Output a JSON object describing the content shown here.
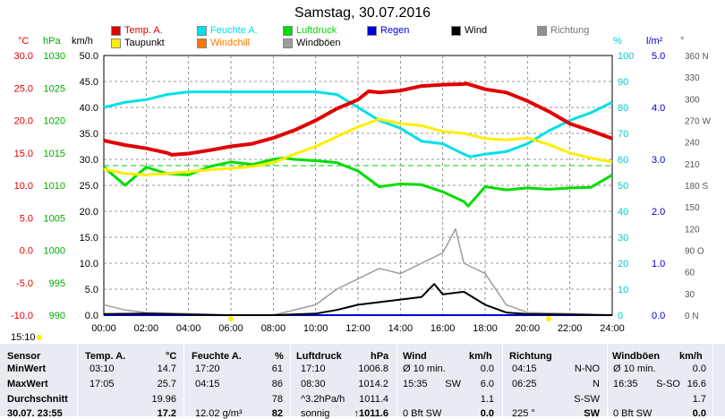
{
  "title": "Samstag, 30.07.2016",
  "legend": [
    {
      "label": "Temp. A.",
      "color": "#e00000"
    },
    {
      "label": "Feuchte A.",
      "color": "#00e0e8"
    },
    {
      "label": "Luftdruck",
      "color": "#00dd00"
    },
    {
      "label": "Regen",
      "color": "#0000dd"
    },
    {
      "label": "Wind",
      "color": "#000000"
    },
    {
      "label": "Richtung",
      "color": "#909090"
    },
    {
      "label": "Taupunkt",
      "color": "#ffee00"
    },
    {
      "label": "Windchill",
      "color": "#ff7700"
    },
    {
      "label": "Windböen",
      "color": "#a09aa0"
    }
  ],
  "units": {
    "celsius": "°C",
    "hpa": "hPa",
    "kmh": "km/h",
    "percent": "%",
    "rain": "l/m²",
    "degree": "°"
  },
  "axes": {
    "celsius": [
      "30.0",
      "25.0",
      "20.0",
      "15.0",
      "10.0",
      "5.0",
      "0.0",
      "-5.0",
      "-10.0"
    ],
    "hpa": [
      "1030",
      "1025",
      "1020",
      "1015",
      "1010",
      "1005",
      "1000",
      "995",
      "990"
    ],
    "kmh": [
      "50.0",
      "45.0",
      "40.0",
      "35.0",
      "30.0",
      "25.0",
      "20.0",
      "15.0",
      "10.0",
      "5.0",
      "0.0"
    ],
    "percent": [
      "100",
      "90",
      "80",
      "70",
      "60",
      "50",
      "40",
      "30",
      "20",
      "10",
      "0"
    ],
    "rain": [
      "5.0",
      "4.0",
      "3.0",
      "2.0",
      "1.0",
      "0.0"
    ],
    "direction": [
      "360 N",
      "330",
      "300",
      "270 W",
      "240",
      "210",
      "180 S",
      "150",
      "120",
      "90 O",
      "60",
      "30",
      "0 N"
    ],
    "time": [
      "00:00",
      "02:00",
      "04:00",
      "06:00",
      "08:00",
      "10:00",
      "12:00",
      "14:00",
      "16:00",
      "18:00",
      "20:00",
      "22:00",
      "24:00"
    ]
  },
  "sun": {
    "sunrise": "15:10"
  },
  "table": {
    "headers": {
      "sensor": "Sensor",
      "temp": "Temp. A.",
      "temp_unit": "°C",
      "humidity": "Feuchte A.",
      "humidity_unit": "%",
      "pressure": "Luftdruck",
      "pressure_unit": "hPa",
      "wind": "Wind",
      "wind_unit": "km/h",
      "direction": "Richtung",
      "gust": "Windböen",
      "gust_unit": "km/h"
    },
    "rows": [
      {
        "label": "MinWert",
        "temp_time": "03:10",
        "temp_val": "14.7",
        "hum_time": "17:20",
        "hum_val": "61",
        "pres_time": "17:10",
        "pres_val": "1006.8",
        "wind_time": "Ø 10 min.",
        "wind_val": "0.0",
        "dir_time": "04:15",
        "dir_val": "N-NO",
        "gust_time": "Ø 10 min.",
        "gust_val": "0.0"
      },
      {
        "label": "MaxWert",
        "temp_time": "17:05",
        "temp_val": "25.7",
        "hum_time": "04:15",
        "hum_val": "86",
        "pres_time": "08:30",
        "pres_val": "1014.2",
        "wind_time": "15:35",
        "wind_dir": "SW",
        "wind_val": "6.0",
        "dir_time": "06:25",
        "dir_val": "N",
        "gust_time": "16:35",
        "gust_dir": "S-SO",
        "gust_val": "16.6"
      },
      {
        "label": "Durchschnitt",
        "temp_val": "19.96",
        "hum_val": "78",
        "pres_time": "^3.2hPa/h",
        "pres_val": "1011.4",
        "wind_val": "1.1",
        "dir_val": "S-SW",
        "gust_val": "1.7"
      },
      {
        "label": "30.07. 23:55",
        "temp_val": "17.2",
        "hum_time": "12.02 g/m³",
        "hum_val": "82",
        "pres_time": "sonnig",
        "pres_val": "↑1011.6",
        "wind_time": "0 Bft SW",
        "wind_val": "0.0",
        "dir_time": "225 °",
        "dir_val": "SW",
        "gust_time": "0 Bft SW",
        "gust_val": "0.0"
      }
    ]
  },
  "chart_data": {
    "type": "line",
    "title": "Samstag, 30.07.2016",
    "x_unit": "hours",
    "xlim": [
      0,
      24
    ],
    "grid": true,
    "legend_position": "top",
    "series": [
      {
        "name": "Temp. A.",
        "axis": "celsius",
        "ylim": [
          -10,
          30
        ],
        "color": "#e00000",
        "x": [
          0,
          1,
          2,
          3,
          3.2,
          4,
          5,
          6,
          7,
          8,
          9,
          10,
          11,
          12,
          12.5,
          13,
          14,
          15,
          16,
          17,
          17.1,
          18,
          19,
          20,
          21,
          22,
          23,
          24
        ],
        "y": [
          16.9,
          16.2,
          15.7,
          15.0,
          14.7,
          14.9,
          15.4,
          16.0,
          16.4,
          17.3,
          18.5,
          20.0,
          21.8,
          23.2,
          24.5,
          24.3,
          24.6,
          25.3,
          25.5,
          25.6,
          25.7,
          24.8,
          24.3,
          23.0,
          21.4,
          19.5,
          18.4,
          17.2
        ]
      },
      {
        "name": "Taupunkt",
        "axis": "celsius",
        "ylim": [
          -10,
          30
        ],
        "color": "#ffee00",
        "x": [
          0,
          1,
          2,
          3,
          4,
          5,
          6,
          7,
          8,
          9,
          10,
          11,
          12,
          13,
          14,
          15,
          16,
          17,
          18,
          19,
          20,
          21,
          22,
          23,
          24
        ],
        "y": [
          12.5,
          11.8,
          11.6,
          11.8,
          12.1,
          12.4,
          12.6,
          12.9,
          13.5,
          14.8,
          16.0,
          17.5,
          19.0,
          20.2,
          19.5,
          19.2,
          18.3,
          18.0,
          17.2,
          17.0,
          17.3,
          16.3,
          15.0,
          14.2,
          13.6
        ]
      },
      {
        "name": "Feuchte A.",
        "axis": "percent",
        "ylim": [
          0,
          100
        ],
        "color": "#00e0e8",
        "x": [
          0,
          1,
          2,
          3,
          4,
          5,
          6,
          7,
          8,
          9,
          10,
          11,
          12,
          13,
          14,
          15,
          16,
          17,
          17.3,
          18,
          19,
          20,
          21,
          22,
          23,
          24
        ],
        "y": [
          80,
          82,
          83,
          85,
          86,
          86,
          86,
          86,
          86,
          86,
          86,
          85,
          80,
          75,
          72,
          67,
          66,
          62,
          61,
          62,
          63,
          66,
          71,
          75,
          78,
          82
        ]
      },
      {
        "name": "Luftdruck",
        "axis": "hpa",
        "ylim": [
          990,
          1030
        ],
        "color": "#00dd00",
        "x": [
          0,
          1,
          2,
          3,
          4,
          5,
          6,
          7,
          8,
          8.5,
          9,
          10,
          11,
          12,
          13,
          14,
          15,
          16,
          17,
          17.2,
          18,
          19,
          20,
          21,
          22,
          23,
          24
        ],
        "y": [
          1012.8,
          1010.0,
          1012.8,
          1011.8,
          1011.6,
          1012.9,
          1013.6,
          1013.2,
          1014.0,
          1014.2,
          1014.0,
          1013.8,
          1013.5,
          1012.2,
          1009.8,
          1010.2,
          1010.1,
          1009.0,
          1007.5,
          1006.8,
          1009.8,
          1009.3,
          1009.6,
          1009.4,
          1009.6,
          1009.7,
          1011.6
        ]
      },
      {
        "name": "Wind",
        "axis": "kmh",
        "ylim": [
          0,
          50
        ],
        "color": "#000000",
        "x": [
          0,
          2,
          4,
          6,
          8,
          10,
          11,
          12,
          13,
          14,
          15,
          15.6,
          16,
          17,
          18,
          19,
          20,
          22,
          24
        ],
        "y": [
          0.2,
          0.3,
          0.1,
          0.0,
          0.0,
          0.3,
          1.0,
          2.0,
          2.5,
          3.0,
          3.5,
          6.0,
          4.0,
          4.5,
          2.0,
          0.5,
          0.2,
          0.1,
          0.0
        ]
      },
      {
        "name": "Windböen",
        "axis": "kmh",
        "ylim": [
          0,
          50
        ],
        "color": "#a09aa0",
        "x": [
          0,
          1,
          2,
          4,
          6,
          8,
          10,
          11,
          12,
          13,
          14,
          15,
          16,
          16.6,
          17,
          18,
          19,
          20,
          22,
          24
        ],
        "y": [
          2,
          1,
          0.5,
          0.3,
          0,
          0,
          2,
          5,
          7,
          9,
          8,
          10,
          12,
          16.6,
          10,
          8,
          2,
          0.5,
          0.3,
          0
        ]
      },
      {
        "name": "Regen",
        "axis": "rain",
        "ylim": [
          0,
          5
        ],
        "color": "#0000dd",
        "x": [
          0,
          24
        ],
        "y": [
          0,
          0
        ]
      }
    ]
  }
}
